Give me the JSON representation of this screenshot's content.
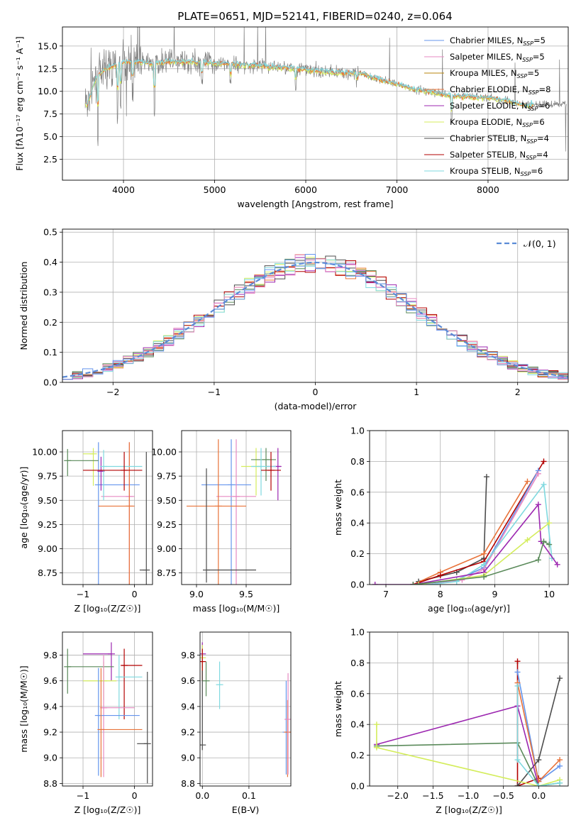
{
  "figure": {
    "title": "PLATE=0651, MJD=52141, FIBERID=0240, z=0.064"
  },
  "colors": {
    "chabrier_miles": "#6495ed",
    "salpeter_miles": "#e78ac3",
    "kroupa_miles": "#b8860b",
    "chabrier_elodie": "#e8733a",
    "salpeter_elodie": "#9c27b0",
    "kroupa_elodie": "#d4ed5c",
    "chabrier_stelib": "#4d4d4d",
    "salpeter_stelib": "#b30000",
    "kroupa_stelib": "#7fd9df",
    "green": "#5a8a5a",
    "normal_curve": "#5b8bd6"
  },
  "chart_data": [
    {
      "id": "spectrum",
      "type": "line",
      "title": "PLATE=0651, MJD=52141, FIBERID=0240, z=0.064",
      "xlabel": "wavelength [Angstrom, rest frame]",
      "ylabel": "Flux [fλ10⁻¹⁷ erg cm⁻² s⁻¹ A⁻¹]",
      "xlim": [
        3330,
        8880
      ],
      "ylim": [
        0.2,
        17.1
      ],
      "xticks": [
        "4000",
        "5000",
        "6000",
        "7000",
        "8000"
      ],
      "yticks": [
        "2.5",
        "5.0",
        "7.5",
        "10.0",
        "12.5",
        "15.0"
      ],
      "legend": [
        {
          "label": "Chabrier MILES, N",
          "sub": "SSP",
          "suffix": "=5"
        },
        {
          "label": "Salpeter MILES, N",
          "sub": "SSP",
          "suffix": "=5"
        },
        {
          "label": "Kroupa MILES, N",
          "sub": "SSP",
          "suffix": "=5"
        },
        {
          "label": "Chabrier ELODIE, N",
          "sub": "SSP",
          "suffix": "=8"
        },
        {
          "label": "Salpeter ELODIE, N",
          "sub": "SSP",
          "suffix": "=6"
        },
        {
          "label": "Kroupa ELODIE, N",
          "sub": "SSP",
          "suffix": "=6"
        },
        {
          "label": "Chabrier STELIB, N",
          "sub": "SSP",
          "suffix": "=4"
        },
        {
          "label": "Salpeter STELIB, N",
          "sub": "SSP",
          "suffix": "=4"
        },
        {
          "label": "Kroupa STELIB, N",
          "sub": "SSP",
          "suffix": "=6"
        }
      ],
      "continuum": [
        [
          3600,
          8.5
        ],
        [
          3700,
          11.5
        ],
        [
          3800,
          12.5
        ],
        [
          3900,
          12.8
        ],
        [
          4000,
          13.2
        ],
        [
          4100,
          13.3
        ],
        [
          4200,
          13.2
        ],
        [
          4300,
          13.0
        ],
        [
          4500,
          13.3
        ],
        [
          4700,
          13.3
        ],
        [
          5000,
          13.1
        ],
        [
          5200,
          13.0
        ],
        [
          5500,
          12.8
        ],
        [
          5800,
          12.6
        ],
        [
          6000,
          12.4
        ],
        [
          6300,
          12.1
        ],
        [
          6600,
          12.0
        ],
        [
          6800,
          11.3
        ],
        [
          7000,
          10.8
        ],
        [
          7200,
          10.2
        ],
        [
          7400,
          9.9
        ],
        [
          7600,
          9.5
        ],
        [
          7800,
          9.4
        ],
        [
          8000,
          9.3
        ],
        [
          8200,
          9.0
        ],
        [
          8400,
          8.5
        ],
        [
          8600,
          8.5
        ],
        [
          8800,
          8.6
        ]
      ],
      "model_xmax": 8500
    },
    {
      "id": "residuals",
      "type": "line",
      "xlabel": "(data-model)/error",
      "ylabel": "Normed distribution",
      "xlim": [
        -2.5,
        2.5
      ],
      "ylim": [
        0,
        0.51
      ],
      "xticks": [
        "−2",
        "−1",
        "0",
        "1",
        "2"
      ],
      "yticks": [
        "0.0",
        "0.1",
        "0.2",
        "0.3",
        "0.4",
        "0.5"
      ],
      "legend": "𝒩(0, 1)",
      "bin_width": 0.1,
      "hist_min": -2.5
    },
    {
      "id": "age_vs_Z",
      "type": "scatter",
      "xlabel": "Z [log₁₀(Z/Z☉)]",
      "ylabel": "age  [log₁₀(age/yr)]",
      "xlim": [
        -1.4,
        0.35
      ],
      "ylim": [
        8.63,
        10.22
      ],
      "xticks": [
        "−1",
        "0"
      ],
      "yticks": [
        "8.75",
        "9.00",
        "9.25",
        "9.50",
        "9.75",
        "10.00"
      ],
      "points": [
        {
          "color": "chabrier_miles",
          "x": -0.7,
          "xlo": -0.7,
          "xhi": 0.1,
          "y": 9.66,
          "ylo": 8.63,
          "yhi": 10.1
        },
        {
          "color": "salpeter_miles",
          "x": -0.1,
          "xlo": -0.65,
          "xhi": 0.0,
          "y": 9.54,
          "ylo": 8.63,
          "yhi": 10.1
        },
        {
          "color": "kroupa_elodie",
          "x": -0.8,
          "xlo": -1.0,
          "xhi": -0.8,
          "y": 9.98,
          "ylo": 9.65,
          "yhi": 10.04
        },
        {
          "color": "chabrier_elodie",
          "x": -0.1,
          "xlo": -0.7,
          "xhi": 0.0,
          "y": 9.44,
          "ylo": 8.63,
          "yhi": 10.1
        },
        {
          "color": "salpeter_elodie",
          "x": -0.65,
          "xlo": -0.65,
          "xhi": -0.65,
          "y": 9.8,
          "ylo": 9.6,
          "yhi": 9.95
        },
        {
          "color": "green",
          "x": -1.3,
          "xlo": -1.3,
          "xhi": -0.7,
          "y": 9.91,
          "ylo": 9.75,
          "yhi": 10.03
        },
        {
          "color": "kroupa_stelib",
          "x": -0.6,
          "xlo": -0.6,
          "xhi": 0.15,
          "y": 9.85,
          "ylo": 9.5,
          "yhi": 10.02
        },
        {
          "color": "salpeter_stelib",
          "x": -0.2,
          "xlo": -1.0,
          "xhi": 0.15,
          "y": 9.81,
          "ylo": 9.6,
          "yhi": 10.0
        },
        {
          "color": "chabrier_stelib",
          "x": 0.23,
          "xlo": 0.1,
          "xhi": 0.25,
          "y": 8.78,
          "ylo": 8.63,
          "yhi": 10.0
        }
      ]
    },
    {
      "id": "age_vs_mass",
      "type": "scatter",
      "xlabel": "mass [log₁₀(M/M☉)]",
      "ylabel": "",
      "xlim": [
        8.85,
        9.95
      ],
      "ylim": [
        8.63,
        10.22
      ],
      "xticks": [
        "9.0",
        "9.5"
      ],
      "yticks": [
        "8.75",
        "9.00",
        "9.25",
        "9.50",
        "9.75",
        "10.00"
      ],
      "points": [
        {
          "color": "chabrier_miles",
          "x": 9.35,
          "xlo": 9.05,
          "xhi": 9.55,
          "y": 9.66,
          "ylo": 8.63,
          "yhi": 10.13
        },
        {
          "color": "salpeter_miles",
          "x": 9.4,
          "xlo": 9.2,
          "xhi": 9.6,
          "y": 9.54,
          "ylo": 8.63,
          "yhi": 10.13
        },
        {
          "color": "chabrier_elodie",
          "x": 9.22,
          "xlo": 8.9,
          "xhi": 9.5,
          "y": 9.44,
          "ylo": 8.63,
          "yhi": 10.13
        },
        {
          "color": "salpeter_elodie",
          "x": 9.82,
          "xlo": 9.7,
          "xhi": 9.85,
          "y": 9.85,
          "ylo": 9.5,
          "yhi": 10.04
        },
        {
          "color": "kroupa_elodie",
          "x": 9.6,
          "xlo": 9.45,
          "xhi": 9.65,
          "y": 9.85,
          "ylo": 9.55,
          "yhi": 10.04
        },
        {
          "color": "green",
          "x": 9.7,
          "xlo": 9.55,
          "xhi": 9.8,
          "y": 9.92,
          "ylo": 9.7,
          "yhi": 10.04
        },
        {
          "color": "kroupa_stelib",
          "x": 9.65,
          "xlo": 9.55,
          "xhi": 9.8,
          "y": 9.85,
          "ylo": 9.55,
          "yhi": 10.04
        },
        {
          "color": "salpeter_stelib",
          "x": 9.75,
          "xlo": 9.65,
          "xhi": 9.85,
          "y": 9.81,
          "ylo": 9.6,
          "yhi": 10.0
        },
        {
          "color": "chabrier_stelib",
          "x": 9.1,
          "xlo": 9.1,
          "xhi": 9.6,
          "y": 8.78,
          "ylo": 8.65,
          "yhi": 9.83
        }
      ]
    },
    {
      "id": "weight_vs_age",
      "type": "line",
      "xlabel": "age  [log₁₀(age/yr)]",
      "ylabel": "mass weight",
      "xlim": [
        6.7,
        10.35
      ],
      "ylim": [
        0,
        1.0
      ],
      "xticks": [
        "7",
        "8",
        "9",
        "10"
      ],
      "yticks": [
        "0.0",
        "0.2",
        "0.4",
        "0.6",
        "0.8",
        "1.0"
      ],
      "series": [
        {
          "color": "chabrier_stelib",
          "x": [
            7.6,
            8.3,
            8.8,
            8.85
          ],
          "y": [
            0.02,
            0.08,
            0.17,
            0.7
          ]
        },
        {
          "color": "chabrier_elodie",
          "x": [
            7.5,
            8.0,
            8.8,
            9.6
          ],
          "y": [
            0.0,
            0.08,
            0.2,
            0.67
          ]
        },
        {
          "color": "salpeter_stelib",
          "x": [
            7.5,
            8.0,
            8.8,
            9.9
          ],
          "y": [
            0.0,
            0.06,
            0.15,
            0.8
          ]
        },
        {
          "color": "chabrier_miles",
          "x": [
            7.6,
            8.3,
            8.8,
            9.8
          ],
          "y": [
            0.0,
            0.03,
            0.11,
            0.74
          ]
        },
        {
          "color": "salpeter_miles",
          "x": [
            7.8,
            8.4,
            8.8,
            9.8
          ],
          "y": [
            0.0,
            0.03,
            0.1,
            0.72
          ]
        },
        {
          "color": "kroupa_stelib",
          "x": [
            7.8,
            8.3,
            8.8,
            9.9,
            10.05
          ],
          "y": [
            0.0,
            0.02,
            0.13,
            0.65,
            0.17
          ]
        },
        {
          "color": "salpeter_elodie",
          "x": [
            6.8,
            7.5,
            8.8,
            9.8,
            9.85,
            10.15
          ],
          "y": [
            0.0,
            0.0,
            0.08,
            0.52,
            0.28,
            0.13
          ]
        },
        {
          "color": "kroupa_elodie",
          "x": [
            7.6,
            8.8,
            9.6,
            10.0
          ],
          "y": [
            0.0,
            0.06,
            0.29,
            0.4
          ]
        },
        {
          "color": "green",
          "x": [
            7.5,
            8.8,
            9.8,
            9.9,
            10.0
          ],
          "y": [
            0.0,
            0.05,
            0.16,
            0.28,
            0.26
          ]
        }
      ]
    },
    {
      "id": "mass_vs_Z",
      "type": "scatter",
      "xlabel": "Z [log₁₀(Z/Z☉)]",
      "ylabel": "mass [log₁₀(M/M☉)]",
      "xlim": [
        -1.4,
        0.35
      ],
      "ylim": [
        8.78,
        9.98
      ],
      "xticks": [
        "−1",
        "0"
      ],
      "yticks": [
        "8.8",
        "9.0",
        "9.2",
        "9.4",
        "9.6",
        "9.8"
      ],
      "points": [
        {
          "color": "salpeter_elodie",
          "x": -0.45,
          "xlo": -1.0,
          "xhi": -0.45,
          "y": 9.81,
          "ylo": 9.6,
          "yhi": 9.9
        },
        {
          "color": "salpeter_stelib",
          "x": -0.2,
          "xlo": -0.25,
          "xhi": 0.15,
          "y": 9.72,
          "ylo": 9.3,
          "yhi": 9.85
        },
        {
          "color": "green",
          "x": -1.3,
          "xlo": -1.3,
          "xhi": -0.4,
          "y": 9.71,
          "ylo": 9.5,
          "yhi": 9.85
        },
        {
          "color": "kroupa_stelib",
          "x": -0.3,
          "xlo": -0.3,
          "xhi": 0.15,
          "y": 9.63,
          "ylo": 9.3,
          "yhi": 9.8
        },
        {
          "color": "kroupa_elodie",
          "x": -0.6,
          "xlo": -1.0,
          "xhi": -0.35,
          "y": 9.6,
          "ylo": 9.45,
          "yhi": 9.75
        },
        {
          "color": "salpeter_miles",
          "x": -0.6,
          "xlo": -0.65,
          "xhi": 0.0,
          "y": 9.39,
          "ylo": 8.85,
          "yhi": 9.8
        },
        {
          "color": "chabrier_miles",
          "x": -0.7,
          "xlo": -0.7,
          "xhi": 0.1,
          "y": 9.33,
          "ylo": 8.86,
          "yhi": 9.7
        },
        {
          "color": "chabrier_elodie",
          "x": -0.65,
          "xlo": -0.65,
          "xhi": 0.15,
          "y": 9.22,
          "ylo": 8.85,
          "yhi": 9.7
        },
        {
          "color": "chabrier_stelib",
          "x": 0.25,
          "xlo": 0.05,
          "xhi": 0.25,
          "y": 9.11,
          "ylo": 8.8,
          "yhi": 9.67
        }
      ]
    },
    {
      "id": "mass_vs_ebv",
      "type": "scatter",
      "xlabel": "E(B-V)",
      "ylabel": "",
      "xlim": [
        -0.005,
        0.19
      ],
      "ylim": [
        8.78,
        9.98
      ],
      "xticks": [
        "0.0",
        "0.1"
      ],
      "yticks": [
        "8.8",
        "9.0",
        "9.2",
        "9.4",
        "9.6",
        "9.8"
      ],
      "points": [
        {
          "color": "salpeter_elodie",
          "x": 0.0,
          "y": 9.81,
          "ylo": 9.7,
          "yhi": 9.9
        },
        {
          "color": "kroupa_elodie",
          "x": 0.0,
          "y": 9.78,
          "ylo": 9.6,
          "yhi": 9.88
        },
        {
          "color": "salpeter_stelib",
          "x": 0.0,
          "y": 9.75,
          "ylo": 9.6,
          "yhi": 9.85
        },
        {
          "color": "kroupa_stelib",
          "x": 0.037,
          "y": 9.57,
          "ylo": 9.38,
          "yhi": 9.75
        },
        {
          "color": "green",
          "x": 0.008,
          "y": 9.6,
          "ylo": 9.48,
          "yhi": 9.75
        },
        {
          "color": "chabrier_stelib",
          "x": 0.0,
          "y": 9.1,
          "ylo": 9.06,
          "yhi": 9.68
        },
        {
          "color": "chabrier_miles",
          "x": 0.18,
          "y": 9.2,
          "ylo": 8.87,
          "yhi": 9.6
        },
        {
          "color": "chabrier_elodie",
          "x": 0.183,
          "y": 9.2,
          "ylo": 8.85,
          "yhi": 9.45
        },
        {
          "color": "salpeter_miles",
          "x": 0.184,
          "y": 9.3,
          "ylo": 8.87,
          "yhi": 9.66
        }
      ]
    },
    {
      "id": "weight_vs_Z",
      "type": "line",
      "xlabel": "Z [log₁₀(Z/Z☉)]",
      "ylabel": "mass weight",
      "xlim": [
        -2.4,
        0.42
      ],
      "ylim": [
        0,
        1.0
      ],
      "xticks": [
        "−2.0",
        "−1.5",
        "−1.0",
        "−0.5",
        "0.0"
      ],
      "yticks": [
        "0.0",
        "0.2",
        "0.4",
        "0.6",
        "0.8",
        "1.0"
      ],
      "series": [
        {
          "color": "salpeter_stelib",
          "x": [
            -0.3,
            -0.3,
            0.0
          ],
          "y": [
            0.81,
            0.0,
            0.05
          ]
        },
        {
          "color": "chabrier_miles",
          "x": [
            -0.3,
            0.0,
            0.3
          ],
          "y": [
            0.74,
            0.03,
            0.13
          ]
        },
        {
          "color": "chabrier_elodie",
          "x": [
            -0.3,
            0.0,
            0.3
          ],
          "y": [
            0.67,
            0.03,
            0.17
          ]
        },
        {
          "color": "chabrier_stelib",
          "x": [
            -0.3,
            0.0,
            0.3
          ],
          "y": [
            0.0,
            0.17,
            0.7
          ]
        },
        {
          "color": "salpeter_elodie",
          "x": [
            -2.3,
            -0.3,
            0.0
          ],
          "y": [
            0.27,
            0.52,
            0.0
          ]
        },
        {
          "color": "green",
          "x": [
            -2.3,
            -0.3,
            0.0,
            0.3
          ],
          "y": [
            0.26,
            0.28,
            0.0,
            0.02
          ]
        },
        {
          "color": "kroupa_elodie",
          "x": [
            -2.3,
            -2.3,
            0.0,
            0.3
          ],
          "y": [
            0.4,
            0.25,
            0.0,
            0.04
          ]
        },
        {
          "color": "kroupa_stelib",
          "x": [
            -0.3,
            -0.3,
            0.0,
            0.3
          ],
          "y": [
            0.65,
            0.17,
            0.0,
            0.02
          ]
        }
      ]
    }
  ]
}
